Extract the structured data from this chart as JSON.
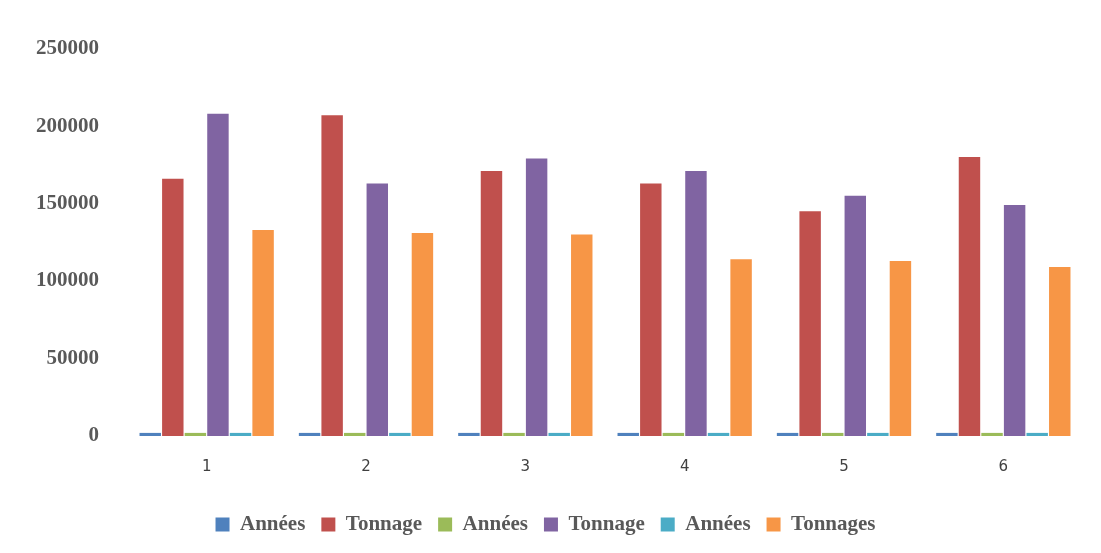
{
  "chart_data": {
    "type": "bar",
    "categories": [
      "1",
      "2",
      "3",
      "4",
      "5",
      "6"
    ],
    "series": [
      {
        "name": "Années",
        "color": "#4f81bd",
        "values": [
          2000,
          2000,
          2000,
          2000,
          2000,
          2000
        ]
      },
      {
        "name": "Tonnage",
        "color": "#c0504d",
        "values": [
          166000,
          207000,
          171000,
          163000,
          145000,
          180000
        ]
      },
      {
        "name": "Années",
        "color": "#9bbb59",
        "values": [
          2000,
          2000,
          2000,
          2000,
          2000,
          2000
        ]
      },
      {
        "name": "Tonnage",
        "color": "#8064a2",
        "values": [
          208000,
          163000,
          179000,
          171000,
          155000,
          149000
        ]
      },
      {
        "name": "Années",
        "color": "#4bacc6",
        "values": [
          2000,
          2000,
          2000,
          2000,
          2000,
          2000
        ]
      },
      {
        "name": "Tonnages",
        "color": "#f79646",
        "values": [
          133000,
          131000,
          130000,
          114000,
          113000,
          109000
        ]
      }
    ],
    "ylim": [
      0,
      250000
    ],
    "yticks": [
      0,
      50000,
      100000,
      150000,
      200000,
      250000
    ],
    "grid": false,
    "legend": "bottom"
  }
}
